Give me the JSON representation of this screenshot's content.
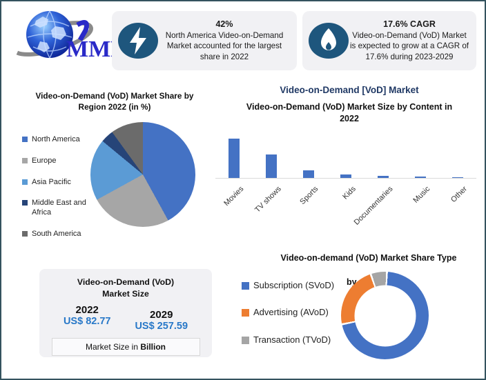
{
  "logo": {
    "text": "MMR"
  },
  "stats": [
    {
      "icon": "lightning-icon",
      "headline": "42%",
      "description": "North America Video-on-Demand Market accounted for the largest share in 2022"
    },
    {
      "icon": "flame-icon",
      "headline": "17.6% CAGR",
      "description": "Video-on-Demand (VoD) Market is expected to grow at a CAGR of 17.6% during 2023-2029"
    }
  ],
  "main_title": "Video-on-Demand [VoD] Market",
  "chart_data": [
    {
      "id": "region-pie",
      "type": "pie",
      "title": "Video-on-Demand (VoD) Market Share by Region 2022 (in %)",
      "title_lines": [
        "Video-on-Demand (VoD) Market Share by",
        "Region 2022 (in %)"
      ],
      "categories": [
        "North America",
        "Europe",
        "Asia Pacific",
        "Middle East and Africa",
        "South America"
      ],
      "values": [
        42,
        25,
        19,
        4,
        10
      ],
      "colors": [
        "#4472C4",
        "#A6A6A6",
        "#5B9BD5",
        "#264478",
        "#6B6B6B"
      ],
      "legend_position": "left",
      "data_labels": false
    },
    {
      "id": "content-bar",
      "type": "bar",
      "title": "Video-on-Demand (VoD) Market Size by Content in 2022",
      "title_lines": [
        "Video-on-Demand (VoD) Market Size by Content in",
        "2022"
      ],
      "categories": [
        "Movies",
        "TV shows",
        "Sports",
        "Kids",
        "Documentaries",
        "Music",
        "Other"
      ],
      "values": [
        100,
        60,
        19,
        9,
        6,
        4,
        1
      ],
      "values_note": "no y-axis shown; heights estimated relative to tallest bar = 100",
      "bar_color": "#4472C4",
      "xlabel": "",
      "ylabel": "",
      "ylim": [
        0,
        105
      ],
      "grid": false,
      "legend": false
    },
    {
      "id": "type-donut",
      "type": "pie",
      "subtype": "donut",
      "title": "Video-on-demand (VoD) Market Share Type by  in 2022",
      "title_lines": [
        "Video-on-demand (VoD) Market Share Type",
        "by  in 2022"
      ],
      "categories": [
        "Subscription (SVoD)",
        "Advertising (AVoD)",
        "Transaction (TVoD)"
      ],
      "values": [
        71,
        23,
        6
      ],
      "colors": [
        "#4472C4",
        "#ED7D31",
        "#A5A5A5"
      ],
      "legend_position": "left",
      "data_labels": false
    }
  ],
  "market_size_box": {
    "title_line1": "Video-on-Demand (VoD)",
    "title_line2": "Market Size",
    "col1": {
      "year": "2022",
      "value": "US$ 82.77"
    },
    "col2": {
      "year": "2029",
      "value": "US$ 257.59"
    },
    "note_prefix": "Market Size in ",
    "note_bold": "Billion"
  },
  "colors": {
    "frame_border": "#33535E",
    "stat_box_bg": "#F1F1F4",
    "stat_icon_bg": "#1E567D",
    "navy_title": "#1F3864",
    "value_blue": "#2878C8",
    "axis_line": "#D9D9D9"
  }
}
